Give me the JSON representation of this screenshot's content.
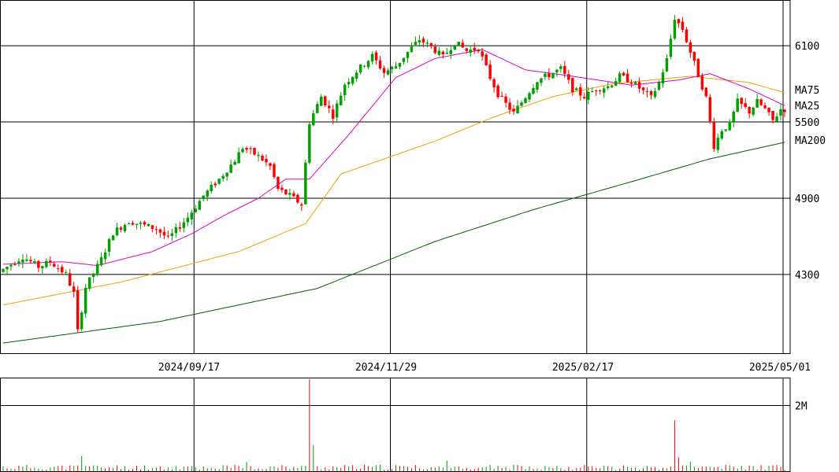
{
  "chart_data": [
    {
      "type": "candlestick",
      "x_ticks": [
        "2024/09/17",
        "2024/11/29",
        "2025/02/17",
        "2025/05/01"
      ],
      "y_ticks": [
        4300,
        4900,
        5500,
        6100
      ],
      "ylim": [
        3680,
        6460
      ],
      "grid": true,
      "up_color": "#00a000",
      "down_color": "#ff0000",
      "keypoints": [
        {
          "t": 0,
          "v": 4320
        },
        {
          "t": 6,
          "v": 4440
        },
        {
          "t": 10,
          "v": 4360
        },
        {
          "t": 13,
          "v": 4400
        },
        {
          "t": 17,
          "v": 4300
        },
        {
          "t": 19,
          "v": 4150
        },
        {
          "t": 20,
          "v": 3850
        },
        {
          "t": 22,
          "v": 4200
        },
        {
          "t": 26,
          "v": 4420
        },
        {
          "t": 29,
          "v": 4630
        },
        {
          "t": 33,
          "v": 4720
        },
        {
          "t": 40,
          "v": 4660
        },
        {
          "t": 43,
          "v": 4580
        },
        {
          "t": 48,
          "v": 4750
        },
        {
          "t": 52,
          "v": 4920
        },
        {
          "t": 56,
          "v": 5050
        },
        {
          "t": 60,
          "v": 5200
        },
        {
          "t": 62,
          "v": 5300
        },
        {
          "t": 66,
          "v": 5230
        },
        {
          "t": 69,
          "v": 5150
        },
        {
          "t": 71,
          "v": 4970
        },
        {
          "t": 74,
          "v": 4920
        },
        {
          "t": 77,
          "v": 4850
        },
        {
          "t": 79,
          "v": 5500
        },
        {
          "t": 82,
          "v": 5700
        },
        {
          "t": 85,
          "v": 5550
        },
        {
          "t": 88,
          "v": 5800
        },
        {
          "t": 91,
          "v": 5900
        },
        {
          "t": 95,
          "v": 6020
        },
        {
          "t": 98,
          "v": 5890
        },
        {
          "t": 101,
          "v": 5940
        },
        {
          "t": 104,
          "v": 6050
        },
        {
          "t": 107,
          "v": 6150
        },
        {
          "t": 110,
          "v": 6090
        },
        {
          "t": 113,
          "v": 6010
        },
        {
          "t": 116,
          "v": 6130
        },
        {
          "t": 119,
          "v": 6060
        },
        {
          "t": 122,
          "v": 6080
        },
        {
          "t": 125,
          "v": 5850
        },
        {
          "t": 127,
          "v": 5720
        },
        {
          "t": 129,
          "v": 5640
        },
        {
          "t": 131,
          "v": 5570
        },
        {
          "t": 134,
          "v": 5700
        },
        {
          "t": 137,
          "v": 5830
        },
        {
          "t": 140,
          "v": 5870
        },
        {
          "t": 143,
          "v": 5920
        },
        {
          "t": 146,
          "v": 5760
        },
        {
          "t": 149,
          "v": 5700
        },
        {
          "t": 152,
          "v": 5760
        },
        {
          "t": 155,
          "v": 5780
        },
        {
          "t": 158,
          "v": 5860
        },
        {
          "t": 161,
          "v": 5820
        },
        {
          "t": 164,
          "v": 5740
        },
        {
          "t": 166,
          "v": 5690
        },
        {
          "t": 168,
          "v": 5810
        },
        {
          "t": 170,
          "v": 5990
        },
        {
          "t": 172,
          "v": 6320
        },
        {
          "t": 174,
          "v": 6230
        },
        {
          "t": 176,
          "v": 6050
        },
        {
          "t": 178,
          "v": 5870
        },
        {
          "t": 180,
          "v": 5690
        },
        {
          "t": 182,
          "v": 5310
        },
        {
          "t": 184,
          "v": 5440
        },
        {
          "t": 186,
          "v": 5480
        },
        {
          "t": 188,
          "v": 5660
        },
        {
          "t": 191,
          "v": 5580
        },
        {
          "t": 193,
          "v": 5660
        },
        {
          "t": 195,
          "v": 5600
        },
        {
          "t": 197,
          "v": 5510
        },
        {
          "t": 199,
          "v": 5600
        }
      ],
      "ma": [
        {
          "name": "MA75",
          "color": "#f0a000",
          "values": [
            [
              0,
              4060
            ],
            [
              30,
              4240
            ],
            [
              60,
              4480
            ],
            [
              77,
              4700
            ],
            [
              86,
              5090
            ],
            [
              110,
              5350
            ],
            [
              125,
              5540
            ],
            [
              140,
              5700
            ],
            [
              155,
              5800
            ],
            [
              175,
              5860
            ],
            [
              190,
              5810
            ],
            [
              199,
              5730
            ]
          ]
        },
        {
          "name": "MA25",
          "color": "#e000c0",
          "values": [
            [
              0,
              4380
            ],
            [
              15,
              4400
            ],
            [
              24,
              4370
            ],
            [
              38,
              4480
            ],
            [
              48,
              4620
            ],
            [
              56,
              4760
            ],
            [
              65,
              4900
            ],
            [
              72,
              5050
            ],
            [
              78,
              5050
            ],
            [
              88,
              5400
            ],
            [
              100,
              5850
            ],
            [
              110,
              6000
            ],
            [
              122,
              6070
            ],
            [
              133,
              5910
            ],
            [
              145,
              5860
            ],
            [
              160,
              5790
            ],
            [
              172,
              5830
            ],
            [
              180,
              5880
            ],
            [
              190,
              5760
            ],
            [
              199,
              5630
            ]
          ]
        },
        {
          "name": "MA200",
          "color": "#006000",
          "values": [
            [
              0,
              3760
            ],
            [
              40,
              3930
            ],
            [
              80,
              4190
            ],
            [
              110,
              4560
            ],
            [
              135,
              4810
            ],
            [
              160,
              5030
            ],
            [
              180,
              5210
            ],
            [
              199,
              5340
            ]
          ]
        }
      ]
    },
    {
      "type": "bar",
      "name": "volume",
      "y_ticks": [
        {
          "value": 2000000,
          "label": "2M"
        }
      ],
      "ylim": [
        0,
        2850000
      ],
      "spikes": [
        {
          "t": 20,
          "v": 470000
        },
        {
          "t": 62,
          "v": 280000
        },
        {
          "t": 78,
          "v": 2800000
        },
        {
          "t": 79,
          "v": 800000
        },
        {
          "t": 113,
          "v": 320000
        },
        {
          "t": 171,
          "v": 1550000
        },
        {
          "t": 172,
          "v": 420000
        },
        {
          "t": 175,
          "v": 290000
        }
      ]
    }
  ]
}
